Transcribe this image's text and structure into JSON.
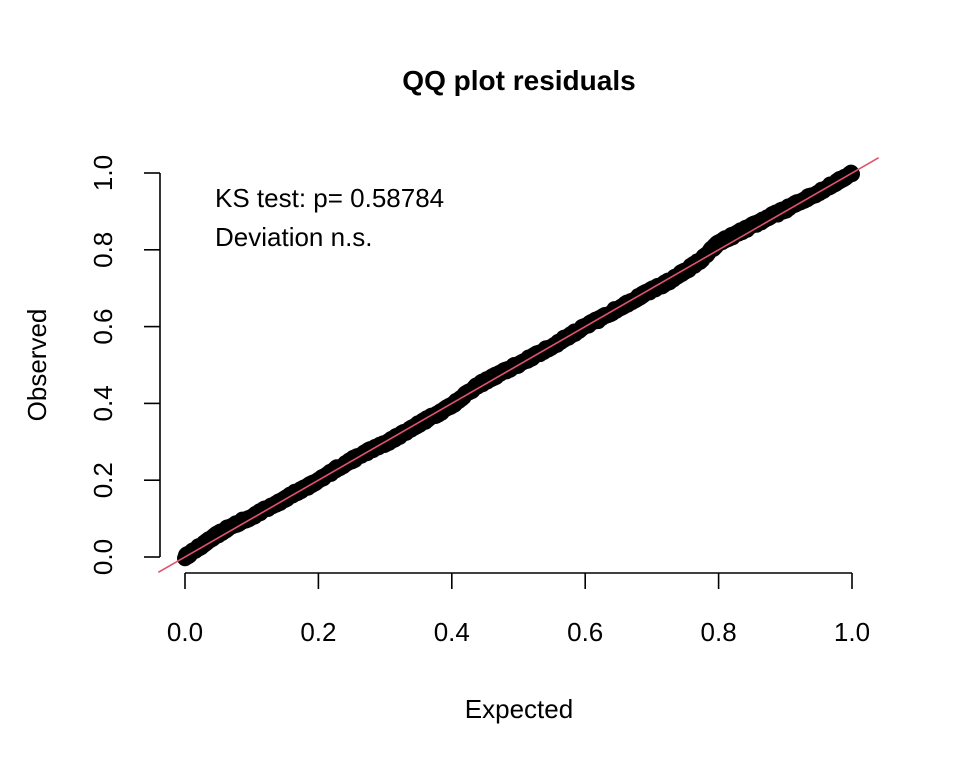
{
  "chart_data": {
    "type": "scatter",
    "title": "QQ plot residuals",
    "xlabel": "Expected",
    "ylabel": "Observed",
    "xlim": [
      0.0,
      1.0
    ],
    "ylim": [
      0.0,
      1.0
    ],
    "x_ticks": [
      0.0,
      0.2,
      0.4,
      0.6,
      0.8,
      1.0
    ],
    "y_ticks": [
      0.0,
      0.2,
      0.4,
      0.6,
      0.8,
      1.0
    ],
    "x_tick_labels": [
      "0.0",
      "0.2",
      "0.4",
      "0.6",
      "0.8",
      "1.0"
    ],
    "y_tick_labels": [
      "0.0",
      "0.2",
      "0.4",
      "0.6",
      "0.8",
      "1.0"
    ],
    "grid": false,
    "annotations": [
      "KS test: p= 0.58784",
      "Deviation  n.s."
    ],
    "point_color": "#000000",
    "reference_line": {
      "intercept": 0,
      "slope": 1,
      "color": "#DF536B"
    },
    "series": [
      {
        "x": [
          0.0,
          0.025,
          0.05,
          0.075,
          0.1,
          0.125,
          0.15,
          0.175,
          0.2,
          0.225,
          0.25,
          0.275,
          0.3,
          0.325,
          0.35,
          0.375,
          0.4,
          0.425,
          0.45,
          0.475,
          0.5,
          0.525,
          0.55,
          0.575,
          0.6,
          0.625,
          0.65,
          0.675,
          0.7,
          0.725,
          0.75,
          0.775,
          0.8,
          0.825,
          0.85,
          0.875,
          0.9,
          0.925,
          0.95,
          0.975,
          1.0
        ],
        "y": [
          0.0,
          0.03,
          0.06,
          0.085,
          0.105,
          0.128,
          0.152,
          0.176,
          0.198,
          0.228,
          0.252,
          0.276,
          0.295,
          0.32,
          0.346,
          0.37,
          0.395,
          0.43,
          0.458,
          0.48,
          0.502,
          0.525,
          0.548,
          0.575,
          0.6,
          0.623,
          0.648,
          0.672,
          0.695,
          0.717,
          0.745,
          0.775,
          0.818,
          0.84,
          0.862,
          0.885,
          0.905,
          0.928,
          0.95,
          0.974,
          1.0
        ]
      }
    ]
  }
}
